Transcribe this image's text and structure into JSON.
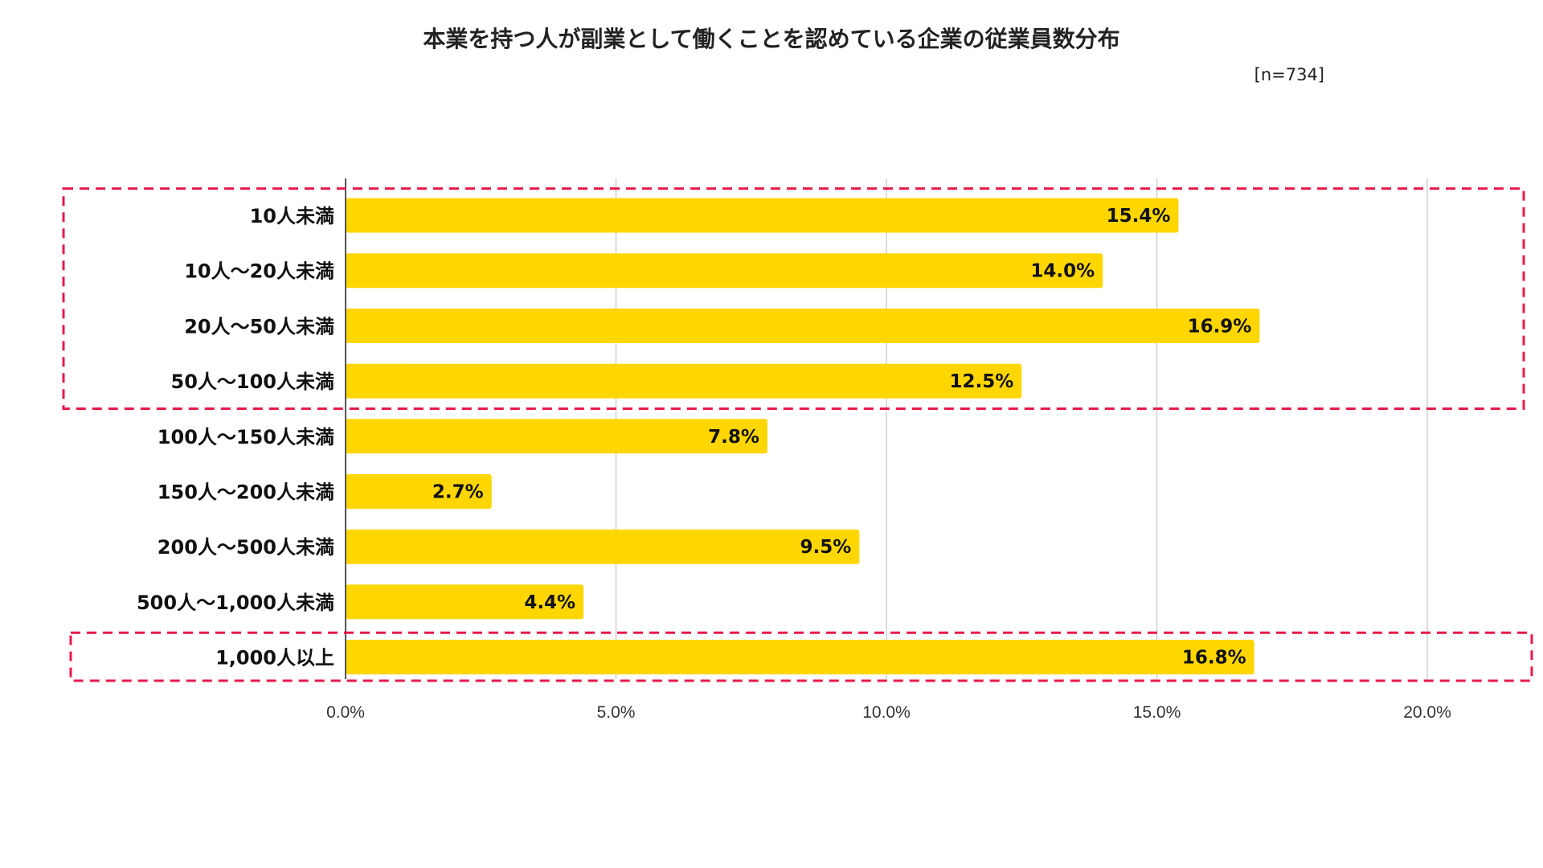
{
  "chart_data": {
    "type": "bar",
    "orientation": "horizontal",
    "title": "本業を持つ人が副業として働くことを認めている企業の従業員数分布",
    "sample_note": "[n=734]",
    "xlabel": "",
    "ylabel": "",
    "xlim": [
      0,
      20
    ],
    "grid": true,
    "categories": [
      "10人未満",
      "10人〜20人未満",
      "20人〜50人未満",
      "50人〜100人未満",
      "100人〜150人未満",
      "150人〜200人未満",
      "200人〜500人未満",
      "500人〜1,000人未満",
      "1,000人以上"
    ],
    "values": [
      15.4,
      14.0,
      16.9,
      12.5,
      7.8,
      2.7,
      9.5,
      4.4,
      16.8
    ],
    "value_labels": [
      "15.4%",
      "14.0%",
      "16.9%",
      "12.5%",
      "7.8%",
      "2.7%",
      "9.5%",
      "4.4%",
      "16.8%"
    ],
    "x_ticks": [
      0,
      5,
      10,
      15,
      20
    ],
    "x_tick_labels": [
      "0.0%",
      "5.0%",
      "10.0%",
      "15.0%",
      "20.0%"
    ],
    "highlight_groups": [
      {
        "from_index": 0,
        "to_index": 3
      },
      {
        "from_index": 8,
        "to_index": 8
      }
    ],
    "colors": {
      "bar": "#FFD600",
      "grid": "#D0D0D0",
      "axis": "#555555",
      "highlight": "#E8194A"
    }
  }
}
